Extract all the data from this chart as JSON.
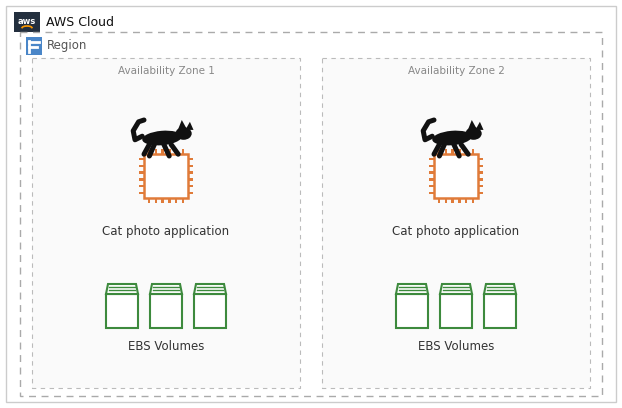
{
  "bg_color": "#ffffff",
  "aws_cloud_label": "AWS Cloud",
  "region_label": "Region",
  "region_border_color": "#aaaaaa",
  "az1_label": "Availability Zone 1",
  "az2_label": "Availability Zone 2",
  "ec2_label": "Cat photo application",
  "ebs_label": "EBS Volumes",
  "ec2_color": "#e07b39",
  "ebs_color": "#3d8a3d",
  "text_color": "#333333",
  "label_color": "#888888",
  "outer_border": "#aaaaaa",
  "az_border": "#bbbbbb",
  "region_icon_color": "#4a86c8"
}
